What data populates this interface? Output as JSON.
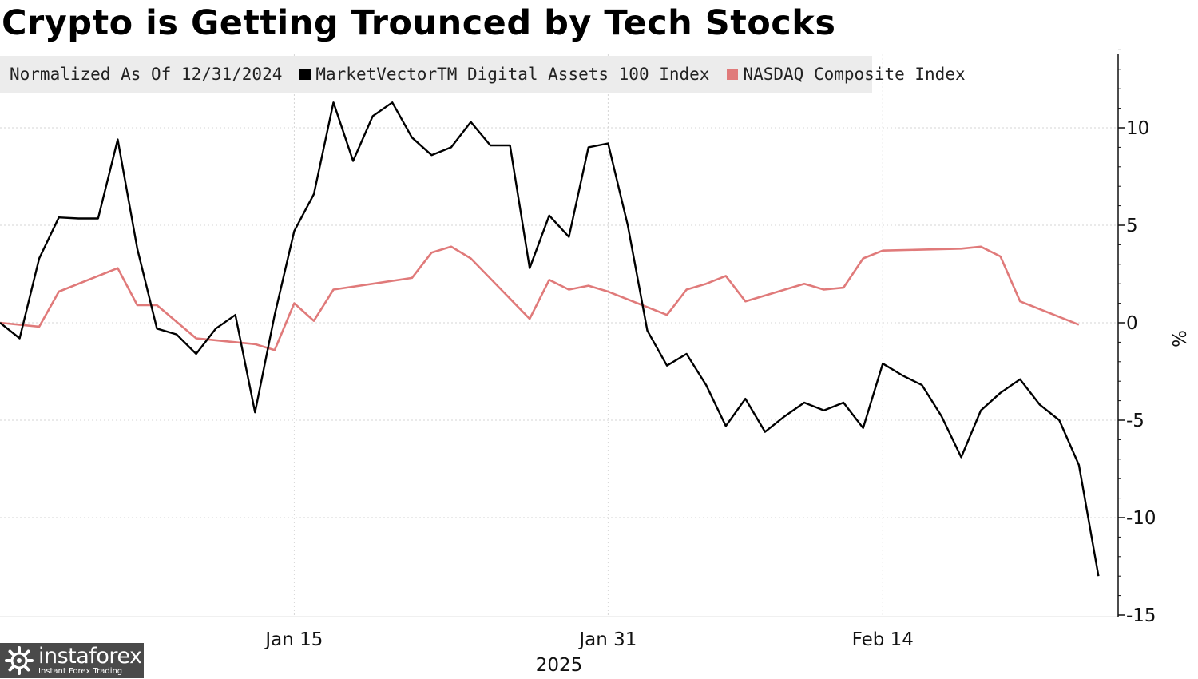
{
  "chart_data": {
    "type": "line",
    "title": "Crypto is Getting Trounced by Tech Stocks",
    "legend_label": "Normalized As Of 12/31/2024",
    "ylabel": "%",
    "ylim": [
      -15,
      14
    ],
    "y_ticks": [
      10,
      5,
      0,
      -5,
      -10,
      -15
    ],
    "x_domain": [
      "2024-12-31",
      "2025-02-26"
    ],
    "x_ticks": [
      {
        "date": "2025-01-15",
        "label": "Jan 15"
      },
      {
        "date": "2025-01-31",
        "label": "Jan 31"
      },
      {
        "date": "2025-02-14",
        "label": "Feb 14"
      }
    ],
    "year_label": "2025",
    "grid": true,
    "legend_position": "top-left",
    "series": [
      {
        "name": "MarketVectorTM Digital Assets 100 Index",
        "color": "#000000",
        "points": [
          [
            "2024-12-31",
            0.0
          ],
          [
            "2025-01-01",
            -0.8
          ],
          [
            "2025-01-02",
            3.3
          ],
          [
            "2025-01-03",
            5.4
          ],
          [
            "2025-01-04",
            5.35
          ],
          [
            "2025-01-05",
            5.35
          ],
          [
            "2025-01-06",
            9.4
          ],
          [
            "2025-01-07",
            3.8
          ],
          [
            "2025-01-08",
            -0.3
          ],
          [
            "2025-01-09",
            -0.6
          ],
          [
            "2025-01-10",
            -1.6
          ],
          [
            "2025-01-11",
            -0.3
          ],
          [
            "2025-01-12",
            0.4
          ],
          [
            "2025-01-13",
            -4.6
          ],
          [
            "2025-01-14",
            0.4
          ],
          [
            "2025-01-15",
            4.7
          ],
          [
            "2025-01-16",
            6.6
          ],
          [
            "2025-01-17",
            11.3
          ],
          [
            "2025-01-18",
            8.3
          ],
          [
            "2025-01-19",
            10.6
          ],
          [
            "2025-01-20",
            11.3
          ],
          [
            "2025-01-21",
            9.5
          ],
          [
            "2025-01-22",
            8.6
          ],
          [
            "2025-01-23",
            9.0
          ],
          [
            "2025-01-24",
            10.3
          ],
          [
            "2025-01-25",
            9.1
          ],
          [
            "2025-01-26",
            9.1
          ],
          [
            "2025-01-27",
            2.8
          ],
          [
            "2025-01-28",
            5.5
          ],
          [
            "2025-01-29",
            4.4
          ],
          [
            "2025-01-30",
            9.0
          ],
          [
            "2025-01-31",
            9.2
          ],
          [
            "2025-02-01",
            5.0
          ],
          [
            "2025-02-02",
            -0.4
          ],
          [
            "2025-02-03",
            -2.2
          ],
          [
            "2025-02-04",
            -1.6
          ],
          [
            "2025-02-05",
            -3.2
          ],
          [
            "2025-02-06",
            -5.3
          ],
          [
            "2025-02-07",
            -3.9
          ],
          [
            "2025-02-08",
            -5.6
          ],
          [
            "2025-02-09",
            -4.8
          ],
          [
            "2025-02-10",
            -4.1
          ],
          [
            "2025-02-11",
            -4.5
          ],
          [
            "2025-02-12",
            -4.1
          ],
          [
            "2025-02-13",
            -5.4
          ],
          [
            "2025-02-14",
            -2.1
          ],
          [
            "2025-02-15",
            -2.7
          ],
          [
            "2025-02-16",
            -3.2
          ],
          [
            "2025-02-17",
            -4.8
          ],
          [
            "2025-02-18",
            -6.9
          ],
          [
            "2025-02-19",
            -4.5
          ],
          [
            "2025-02-20",
            -3.6
          ],
          [
            "2025-02-21",
            -2.9
          ],
          [
            "2025-02-22",
            -4.2
          ],
          [
            "2025-02-23",
            -5.0
          ],
          [
            "2025-02-24",
            -7.3
          ],
          [
            "2025-02-25",
            -13.0
          ]
        ]
      },
      {
        "name": "NASDAQ Composite Index",
        "color": "#e07a7a",
        "points": [
          [
            "2024-12-31",
            0.0
          ],
          [
            "2025-01-02",
            -0.2
          ],
          [
            "2025-01-03",
            1.6
          ],
          [
            "2025-01-06",
            2.8
          ],
          [
            "2025-01-07",
            0.9
          ],
          [
            "2025-01-08",
            0.9
          ],
          [
            "2025-01-10",
            -0.8
          ],
          [
            "2025-01-13",
            -1.1
          ],
          [
            "2025-01-14",
            -1.4
          ],
          [
            "2025-01-15",
            1.0
          ],
          [
            "2025-01-16",
            0.1
          ],
          [
            "2025-01-17",
            1.7
          ],
          [
            "2025-01-21",
            2.3
          ],
          [
            "2025-01-22",
            3.6
          ],
          [
            "2025-01-23",
            3.9
          ],
          [
            "2025-01-24",
            3.3
          ],
          [
            "2025-01-27",
            0.2
          ],
          [
            "2025-01-28",
            2.2
          ],
          [
            "2025-01-29",
            1.7
          ],
          [
            "2025-01-30",
            1.9
          ],
          [
            "2025-01-31",
            1.6
          ],
          [
            "2025-02-03",
            0.4
          ],
          [
            "2025-02-04",
            1.7
          ],
          [
            "2025-02-05",
            2.0
          ],
          [
            "2025-02-06",
            2.4
          ],
          [
            "2025-02-07",
            1.1
          ],
          [
            "2025-02-10",
            2.0
          ],
          [
            "2025-02-11",
            1.7
          ],
          [
            "2025-02-12",
            1.8
          ],
          [
            "2025-02-13",
            3.3
          ],
          [
            "2025-02-14",
            3.7
          ],
          [
            "2025-02-18",
            3.8
          ],
          [
            "2025-02-19",
            3.9
          ],
          [
            "2025-02-20",
            3.4
          ],
          [
            "2025-02-21",
            1.1
          ],
          [
            "2025-02-24",
            -0.1
          ]
        ]
      }
    ]
  },
  "watermark": {
    "brand": "instaforex",
    "tagline": "Instant Forex Trading",
    "icon": "instaforex-logo-icon"
  }
}
